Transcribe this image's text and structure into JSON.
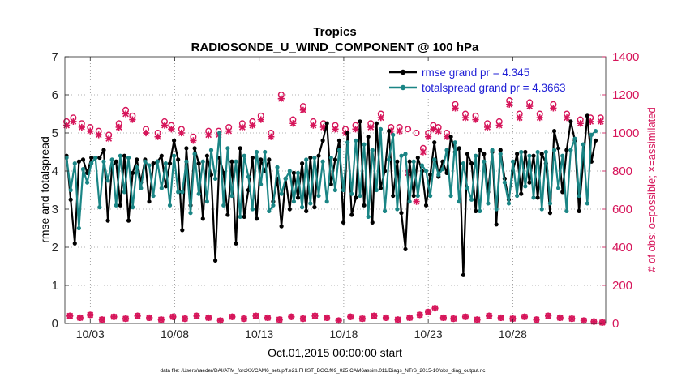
{
  "chart_data": {
    "type": "line",
    "title": "Tropics",
    "subtitle": "RADIOSONDE_U_WIND_COMPONENT @ 100 hPa",
    "xlabel": "Oct.01,2015 00:00:00 start",
    "ylabel": "rmse and totalspread",
    "y2label": "# of obs: o=possible; ×=assimilated",
    "footer": "data file: /Users/raeder/DAI/ATM_forcXX/CAM6_setup/f.e21.FHIST_BGC.f09_025.CAM6assim.011/Diags_NTrS_2015-10/obs_diag_output.nc",
    "xlim": [
      1.5,
      33.5
    ],
    "ylim": [
      0,
      7
    ],
    "y2lim": [
      0,
      1400
    ],
    "x_ticks": [
      3,
      8,
      13,
      18,
      23,
      28
    ],
    "x_tick_labels": [
      "10/03",
      "10/08",
      "10/13",
      "10/18",
      "10/23",
      "10/28"
    ],
    "y_ticks": [
      0,
      1,
      2,
      3,
      4,
      5,
      6,
      7
    ],
    "y2_ticks": [
      0,
      200,
      400,
      600,
      800,
      1000,
      1200,
      1400
    ],
    "colors": {
      "rmse": "#000000",
      "spread": "#1a8585",
      "obs": "#d6155a",
      "legend_text": "#1f1fd6"
    },
    "legend": [
      {
        "name": "rmse grand pr = 4.345",
        "color": "#000000"
      },
      {
        "name": "totalspread grand pr = 4.3663",
        "color": "#1a8585"
      }
    ],
    "series": [
      {
        "name": "rmse",
        "values": [
          4.4,
          3.25,
          2.1,
          4.25,
          4.3,
          3.95,
          4.35,
          4.35,
          4.35,
          4.55,
          2.7,
          4.1,
          4.25,
          3.1,
          4.4,
          2.7,
          3.95,
          4.3,
          3.7,
          4.3,
          3.2,
          4.2,
          4.25,
          4.4,
          3.6,
          4.2,
          4.8,
          4.3,
          2.45,
          4.6,
          3.1,
          4.6,
          4.2,
          2.75,
          4.4,
          3.9,
          1.65,
          4.35,
          3.95,
          2.85,
          4.25,
          2.1,
          4.6,
          2.8,
          3.5,
          4.35,
          2.75,
          4.3,
          4.0,
          4.3,
          3.2,
          3.8,
          2.55,
          3.8,
          3.0,
          3.95,
          3.3,
          4.2,
          2.95,
          4.35,
          3.05,
          4.4,
          4.8,
          5.25,
          3.65,
          4.3,
          4.8,
          2.65,
          5.0,
          2.85,
          3.3,
          5.3,
          3.1,
          4.9,
          2.65,
          5.25,
          3.55,
          4.0,
          5.05,
          3.35,
          4.25,
          2.9,
          1.95,
          4.25,
          3.35,
          4.35,
          4.0,
          3.1,
          3.9,
          4.75,
          3.85,
          4.25,
          3.95,
          4.9,
          4.5,
          4.6,
          1.27,
          4.45,
          4.2,
          2.95,
          4.55,
          4.45,
          3.45,
          4.5,
          2.6,
          4.55,
          3.8,
          3.25,
          4.0,
          4.45,
          3.4,
          4.5,
          3.7,
          4.4,
          3.3,
          4.45,
          4.2,
          2.9,
          5.05,
          4.6,
          3.45,
          4.55,
          5.3,
          4.8,
          2.95,
          4.25,
          5.45,
          4.25,
          4.8
        ]
      },
      {
        "name": "totalspread",
        "values": [
          4.35,
          3.5,
          4.2,
          2.5,
          4.05,
          3.7,
          4.2,
          4.35,
          3.05,
          4.25,
          3.75,
          4.3,
          3.1,
          4.4,
          3.45,
          4.35,
          3.05,
          4.1,
          3.55,
          4.25,
          4.15,
          3.35,
          4.25,
          3.55,
          4.2,
          3.1,
          4.4,
          3.45,
          3.45,
          4.25,
          2.9,
          4.45,
          3.4,
          4.25,
          3.2,
          4.55,
          3.8,
          5.0,
          3.1,
          4.6,
          3.35,
          4.25,
          2.8,
          4.4,
          3.85,
          3.0,
          4.5,
          3.65,
          4.5,
          2.95,
          3.1,
          4.1,
          3.4,
          3.8,
          4.0,
          3.2,
          3.95,
          3.05,
          4.3,
          3.15,
          4.35,
          3.35,
          4.25,
          3.2,
          4.35,
          3.5,
          4.55,
          3.5,
          4.75,
          3.4,
          4.8,
          3.35,
          4.7,
          2.8,
          4.55,
          3.5,
          5.1,
          2.95,
          4.3,
          4.95,
          3.0,
          4.4,
          4.45,
          3.2,
          4.25,
          3.35,
          4.15,
          4.0,
          3.35,
          4.3,
          3.9,
          4.05,
          4.55,
          3.35,
          4.75,
          3.2,
          4.2,
          3.55,
          3.25,
          4.4,
          2.95,
          4.25,
          3.15,
          4.55,
          3.0,
          4.45,
          3.7,
          3.15,
          4.25,
          3.35,
          4.5,
          3.6,
          4.4,
          3.3,
          4.5,
          3.0,
          4.5,
          3.15,
          4.55,
          3.55,
          4.4,
          2.95,
          4.55,
          4.85,
          3.35,
          4.7,
          3.15,
          4.95,
          5.05
        ]
      },
      {
        "name": "obs_possible",
        "axis": "right",
        "x": [
          1.6,
          2.0,
          2.5,
          3.0,
          3.5,
          4.1,
          4.7,
          5.1,
          5.5,
          6.3,
          7.0,
          7.4,
          7.8,
          8.4,
          9.1,
          10.0,
          10.6,
          11.2,
          12.0,
          12.6,
          13.1,
          13.7,
          14.3,
          15.0,
          15.6,
          16.2,
          16.8,
          17.5,
          18.1,
          18.7,
          19.6,
          20.2,
          20.8,
          21.3,
          21.8,
          22.3,
          22.7,
          23.0,
          23.3,
          23.6,
          24.1,
          24.6,
          25.2,
          25.8,
          26.5,
          27.2,
          27.8,
          28.4,
          29.0,
          29.6,
          30.4,
          31.2,
          32.0,
          32.6,
          33.2
        ],
        "values": [
          1060,
          1080,
          1050,
          1030,
          1010,
          990,
          1050,
          1120,
          1090,
          1020,
          1000,
          1060,
          1040,
          1020,
          980,
          1010,
          1010,
          1030,
          1050,
          1060,
          1090,
          1000,
          1200,
          1070,
          1140,
          1060,
          1050,
          1040,
          1020,
          1040,
          1050,
          1100,
          1030,
          1030,
          1020,
          1000,
          920,
          1000,
          1040,
          1030,
          1000,
          1150,
          1100,
          1090,
          1050,
          1060,
          1170,
          1100,
          1160,
          1100,
          1150,
          1100,
          1070,
          1080,
          1080
        ]
      },
      {
        "name": "obs_assimilated",
        "axis": "right",
        "x": [
          1.6,
          2.0,
          2.5,
          3.0,
          3.5,
          4.1,
          4.7,
          5.1,
          5.5,
          6.3,
          7.0,
          7.4,
          7.8,
          8.4,
          9.1,
          10.0,
          10.6,
          11.2,
          12.0,
          12.6,
          13.1,
          13.7,
          14.3,
          15.0,
          15.6,
          16.2,
          16.8,
          17.5,
          18.1,
          18.7,
          19.6,
          20.2,
          20.8,
          21.3,
          21.8,
          22.3,
          22.7,
          23.0,
          23.3,
          23.6,
          24.1,
          24.6,
          25.2,
          25.8,
          26.5,
          27.2,
          27.8,
          28.4,
          29.0,
          29.6,
          30.4,
          31.2,
          32.0,
          32.6,
          33.2
        ],
        "values": [
          1040,
          1060,
          1030,
          1010,
          990,
          970,
          1030,
          1100,
          1070,
          1000,
          980,
          1040,
          1020,
          1000,
          960,
          990,
          990,
          1010,
          1030,
          1040,
          1070,
          980,
          1180,
          1050,
          1120,
          1040,
          1030,
          1020,
          1000,
          1020,
          1030,
          1080,
          1010,
          1010,
          790,
          640,
          900,
          980,
          1020,
          1010,
          980,
          1130,
          1080,
          1070,
          1030,
          1040,
          1150,
          1080,
          1140,
          1080,
          1130,
          1080,
          1050,
          1060,
          1060
        ]
      },
      {
        "name": "obs_low",
        "axis": "right",
        "x": [
          1.8,
          2.4,
          3.0,
          3.7,
          4.4,
          5.1,
          5.8,
          6.5,
          7.2,
          7.9,
          8.6,
          9.3,
          10.0,
          10.7,
          11.4,
          12.1,
          12.8,
          13.5,
          14.2,
          14.9,
          15.6,
          16.3,
          17.0,
          17.7,
          18.4,
          19.1,
          19.8,
          20.5,
          21.2,
          21.9,
          22.5,
          23.0,
          23.4,
          23.9,
          24.5,
          25.2,
          25.9,
          26.6,
          27.3,
          28.0,
          28.7,
          29.4,
          30.1,
          30.8,
          31.5,
          32.2,
          32.8,
          33.3
        ],
        "values": [
          40,
          30,
          45,
          20,
          35,
          25,
          40,
          30,
          20,
          35,
          25,
          40,
          30,
          15,
          35,
          25,
          40,
          30,
          20,
          35,
          25,
          40,
          30,
          15,
          35,
          25,
          40,
          30,
          20,
          30,
          45,
          60,
          80,
          30,
          25,
          35,
          20,
          40,
          30,
          25,
          35,
          20,
          40,
          30,
          25,
          15,
          10,
          5
        ]
      }
    ]
  }
}
